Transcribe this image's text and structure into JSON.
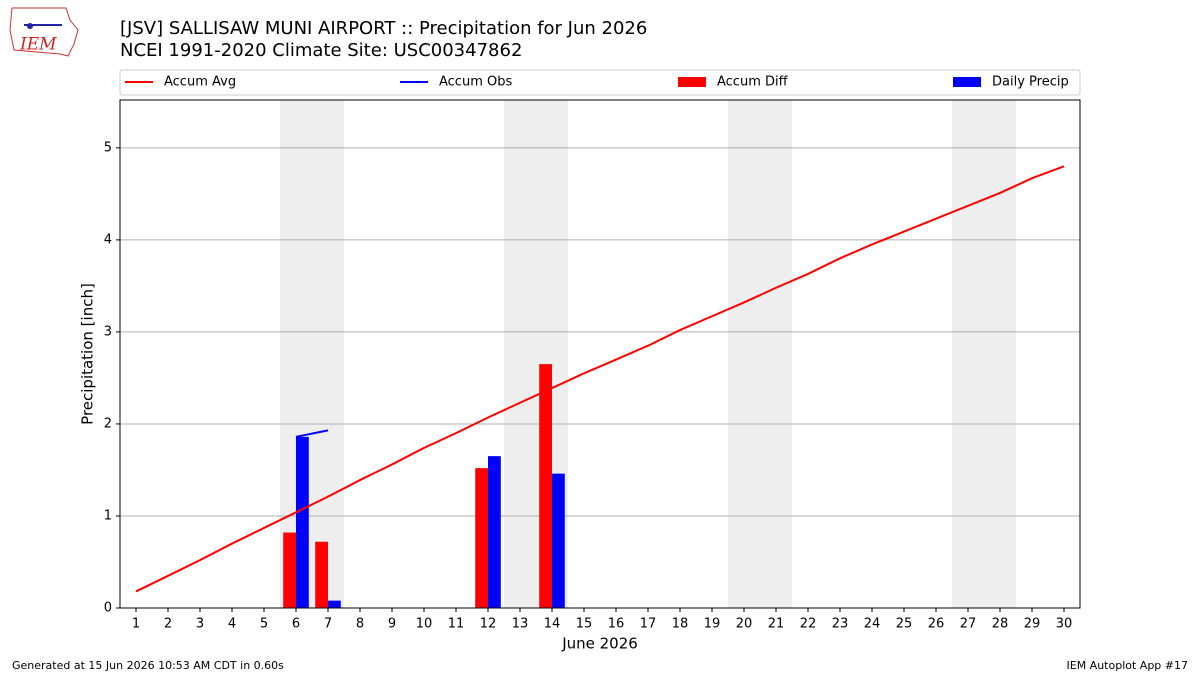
{
  "chart_data": {
    "type": "combo",
    "title": "[JSV] SALLISAW MUNI AIRPORT :: Precipitation for Jun 2026",
    "subtitle": "NCEI 1991-2020 Climate Site: USC00347862",
    "logo": "IEM",
    "x_label": "June 2026",
    "y_label": "Precipitation [inch]",
    "footer_left": "Generated at 15 Jun 2026 10:53 AM CDT in 0.60s",
    "footer_right": "IEM Autoplot App #17",
    "x": [
      1,
      2,
      3,
      4,
      5,
      6,
      7,
      8,
      9,
      10,
      11,
      12,
      13,
      14,
      15,
      16,
      17,
      18,
      19,
      20,
      21,
      22,
      23,
      24,
      25,
      26,
      27,
      28,
      29,
      30
    ],
    "xlim": [
      0.5,
      30.5
    ],
    "xticks": [
      1,
      2,
      3,
      4,
      5,
      6,
      7,
      8,
      9,
      10,
      11,
      12,
      13,
      14,
      15,
      16,
      17,
      18,
      19,
      20,
      21,
      22,
      23,
      24,
      25,
      26,
      27,
      28,
      29,
      30
    ],
    "ylim": [
      0,
      5.52
    ],
    "yticks": [
      0,
      1,
      2,
      3,
      4,
      5
    ],
    "grid": true,
    "legend": "top",
    "shaded_days": [
      6,
      7,
      13,
      14,
      20,
      21,
      27,
      28
    ],
    "shade_color": "#eeeeee",
    "series": [
      {
        "name": "Accum Avg",
        "type": "line",
        "color": "#ff0000",
        "values": [
          0.18,
          0.35,
          0.52,
          0.7,
          0.87,
          1.04,
          1.21,
          1.39,
          1.56,
          1.74,
          1.9,
          2.07,
          2.23,
          2.39,
          2.55,
          2.7,
          2.85,
          3.02,
          3.17,
          3.32,
          3.48,
          3.63,
          3.8,
          3.95,
          4.09,
          4.23,
          4.37,
          4.51,
          4.67,
          4.8
        ]
      },
      {
        "name": "Accum Obs",
        "type": "line",
        "color": "#0000ff",
        "values": [
          null,
          null,
          null,
          null,
          null,
          1.86,
          1.93,
          null,
          null,
          null,
          null,
          null,
          null,
          null,
          null,
          null,
          null,
          null,
          null,
          null,
          null,
          null,
          null,
          null,
          null,
          null,
          null,
          null,
          null,
          null
        ]
      },
      {
        "name": "Accum Diff",
        "type": "bar",
        "color": "#ff0000",
        "values": [
          null,
          null,
          null,
          null,
          null,
          0.82,
          0.72,
          null,
          null,
          null,
          null,
          1.52,
          null,
          2.65,
          null,
          null,
          null,
          null,
          null,
          null,
          null,
          null,
          null,
          null,
          null,
          null,
          null,
          null,
          null,
          null
        ]
      },
      {
        "name": "Daily Precip",
        "type": "bar",
        "color": "#0000ff",
        "values": [
          null,
          null,
          null,
          null,
          null,
          1.86,
          0.08,
          null,
          null,
          null,
          null,
          1.65,
          null,
          1.46,
          null,
          null,
          null,
          null,
          null,
          null,
          null,
          null,
          null,
          null,
          null,
          null,
          null,
          null,
          null,
          null
        ]
      }
    ]
  }
}
